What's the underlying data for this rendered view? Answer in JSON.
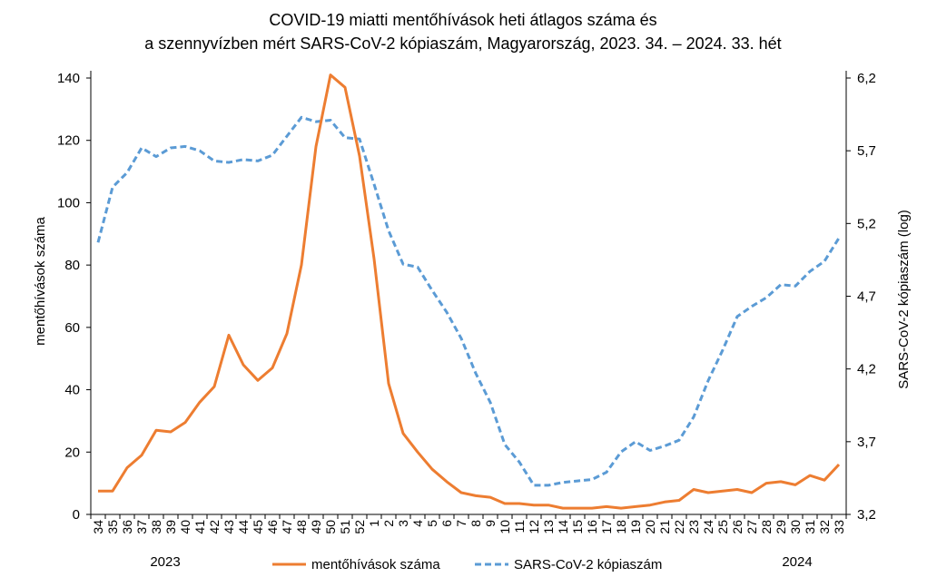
{
  "chart_data": {
    "type": "line",
    "title": [
      "COVID-19 miatti mentőhívások heti átlagos száma és",
      "a szennyvízben mért SARS-CoV-2 kópiaszám, Magyarország, 2023. 34. – 2024. 33. hét"
    ],
    "ylabel": "mentőhívások száma",
    "y2label": "SARS-CoV-2 kópiaszám (log)",
    "ylim": [
      0,
      140
    ],
    "y2lim": [
      3.2,
      6.2
    ],
    "yticks": [
      "0",
      "20",
      "40",
      "60",
      "80",
      "100",
      "120",
      "140"
    ],
    "y2ticks": [
      "3,2",
      "3,7",
      "4,2",
      "4,7",
      "5,2",
      "5,7",
      "6,2"
    ],
    "categories": [
      "34",
      "35",
      "36",
      "37",
      "38",
      "39",
      "40",
      "41",
      "42",
      "43",
      "44",
      "45",
      "46",
      "47",
      "48",
      "49",
      "50",
      "51",
      "52",
      "1",
      "2",
      "3",
      "4",
      "5",
      "6",
      "7",
      "8",
      "9",
      "10",
      "11",
      "12",
      "13",
      "14",
      "15",
      "16",
      "17",
      "18",
      "19",
      "20",
      "21",
      "22",
      "23",
      "24",
      "25",
      "26",
      "27",
      "28",
      "29",
      "30",
      "31",
      "32",
      "33"
    ],
    "year_labels": [
      "2023",
      "2024"
    ],
    "series": [
      {
        "name": "mentőhívások száma",
        "axis": "left",
        "color": "#ED7D31",
        "dash": "solid",
        "values": [
          7.5,
          7.5,
          15,
          19,
          27,
          26.5,
          29.5,
          36,
          41,
          57.5,
          48,
          43,
          47,
          58,
          80,
          118,
          141,
          137,
          115,
          82,
          42,
          26,
          20,
          14.5,
          10.5,
          7,
          6,
          5.5,
          3.5,
          3.5,
          3,
          3,
          2,
          2,
          2,
          2.5,
          2,
          2.5,
          3,
          4,
          4.5,
          8,
          7,
          7.5,
          8,
          7,
          10,
          10.5,
          9.5,
          12.5,
          11,
          16
        ]
      },
      {
        "name": "SARS-CoV-2 kópiaszám",
        "axis": "right",
        "color": "#5B9BD5",
        "dash": "dashed",
        "values": [
          5.07,
          5.45,
          5.55,
          5.72,
          5.66,
          5.72,
          5.73,
          5.7,
          5.63,
          5.62,
          5.64,
          5.63,
          5.67,
          5.8,
          5.93,
          5.9,
          5.91,
          5.79,
          5.78,
          5.47,
          5.15,
          4.92,
          4.9,
          4.74,
          4.59,
          4.41,
          4.17,
          3.97,
          3.68,
          3.56,
          3.4,
          3.4,
          3.42,
          3.43,
          3.44,
          3.49,
          3.63,
          3.7,
          3.64,
          3.67,
          3.71,
          3.87,
          4.12,
          4.33,
          4.56,
          4.63,
          4.69,
          4.78,
          4.77,
          4.87,
          4.94,
          5.1
        ]
      }
    ]
  }
}
